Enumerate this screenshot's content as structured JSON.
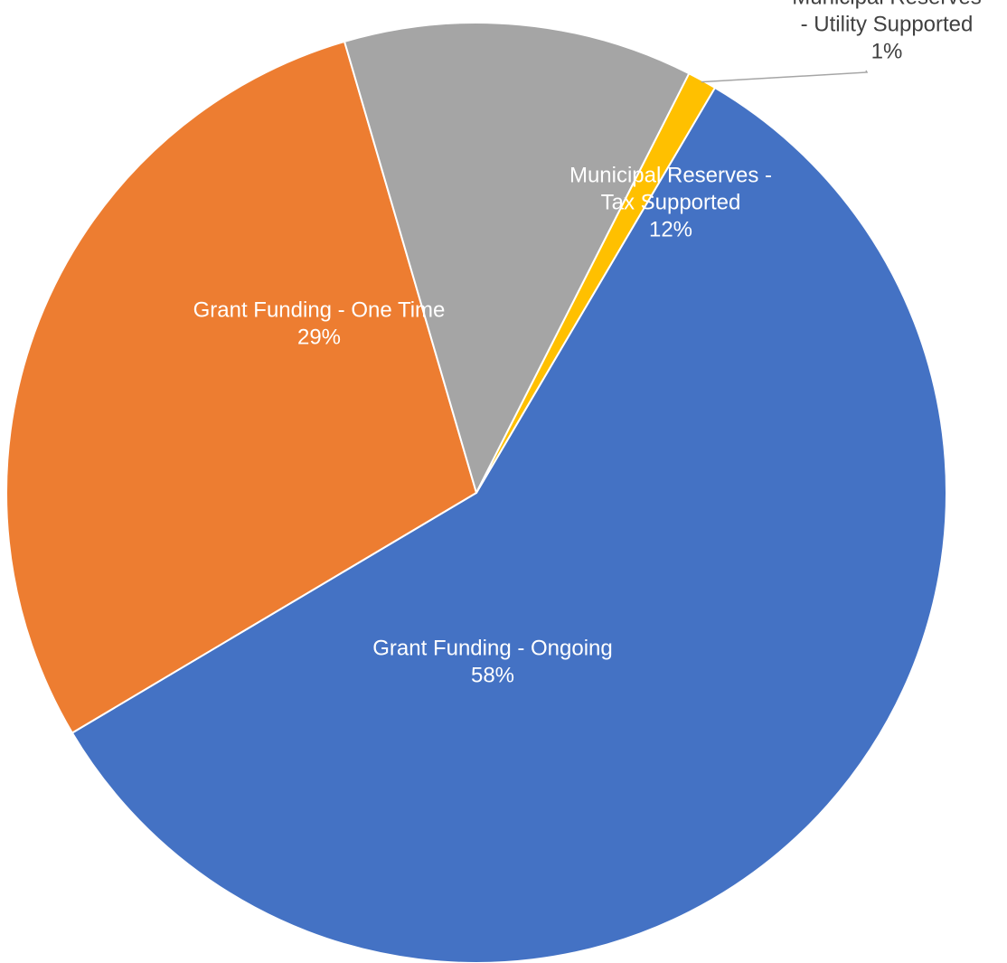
{
  "chart_data": {
    "type": "pie",
    "title": "",
    "slices": [
      {
        "name": "Grant Funding - Ongoing",
        "value": 58,
        "label_lines": [
          "Grant Funding - Ongoing",
          "58%"
        ],
        "color": "#4472C4",
        "text_color": "#FFFFFF"
      },
      {
        "name": "Grant Funding - One Time",
        "value": 29,
        "label_lines": [
          "Grant Funding - One Time",
          "29%"
        ],
        "color": "#ED7D31",
        "text_color": "#FFFFFF"
      },
      {
        "name": "Municipal Reserves - Tax Supported",
        "value": 12,
        "label_lines": [
          "Municipal Reserves -",
          "Tax Supported",
          "12%"
        ],
        "color": "#A5A5A5",
        "text_color": "#FFFFFF"
      },
      {
        "name": "Municipal Reserves - Utility Supported",
        "value": 1,
        "label_lines": [
          "Municipal Reserves",
          "- Utility Supported",
          "1%"
        ],
        "color": "#FFC000",
        "text_color": "#404040"
      }
    ],
    "legend": "none",
    "leader_line_color": "#A5A5A5"
  }
}
